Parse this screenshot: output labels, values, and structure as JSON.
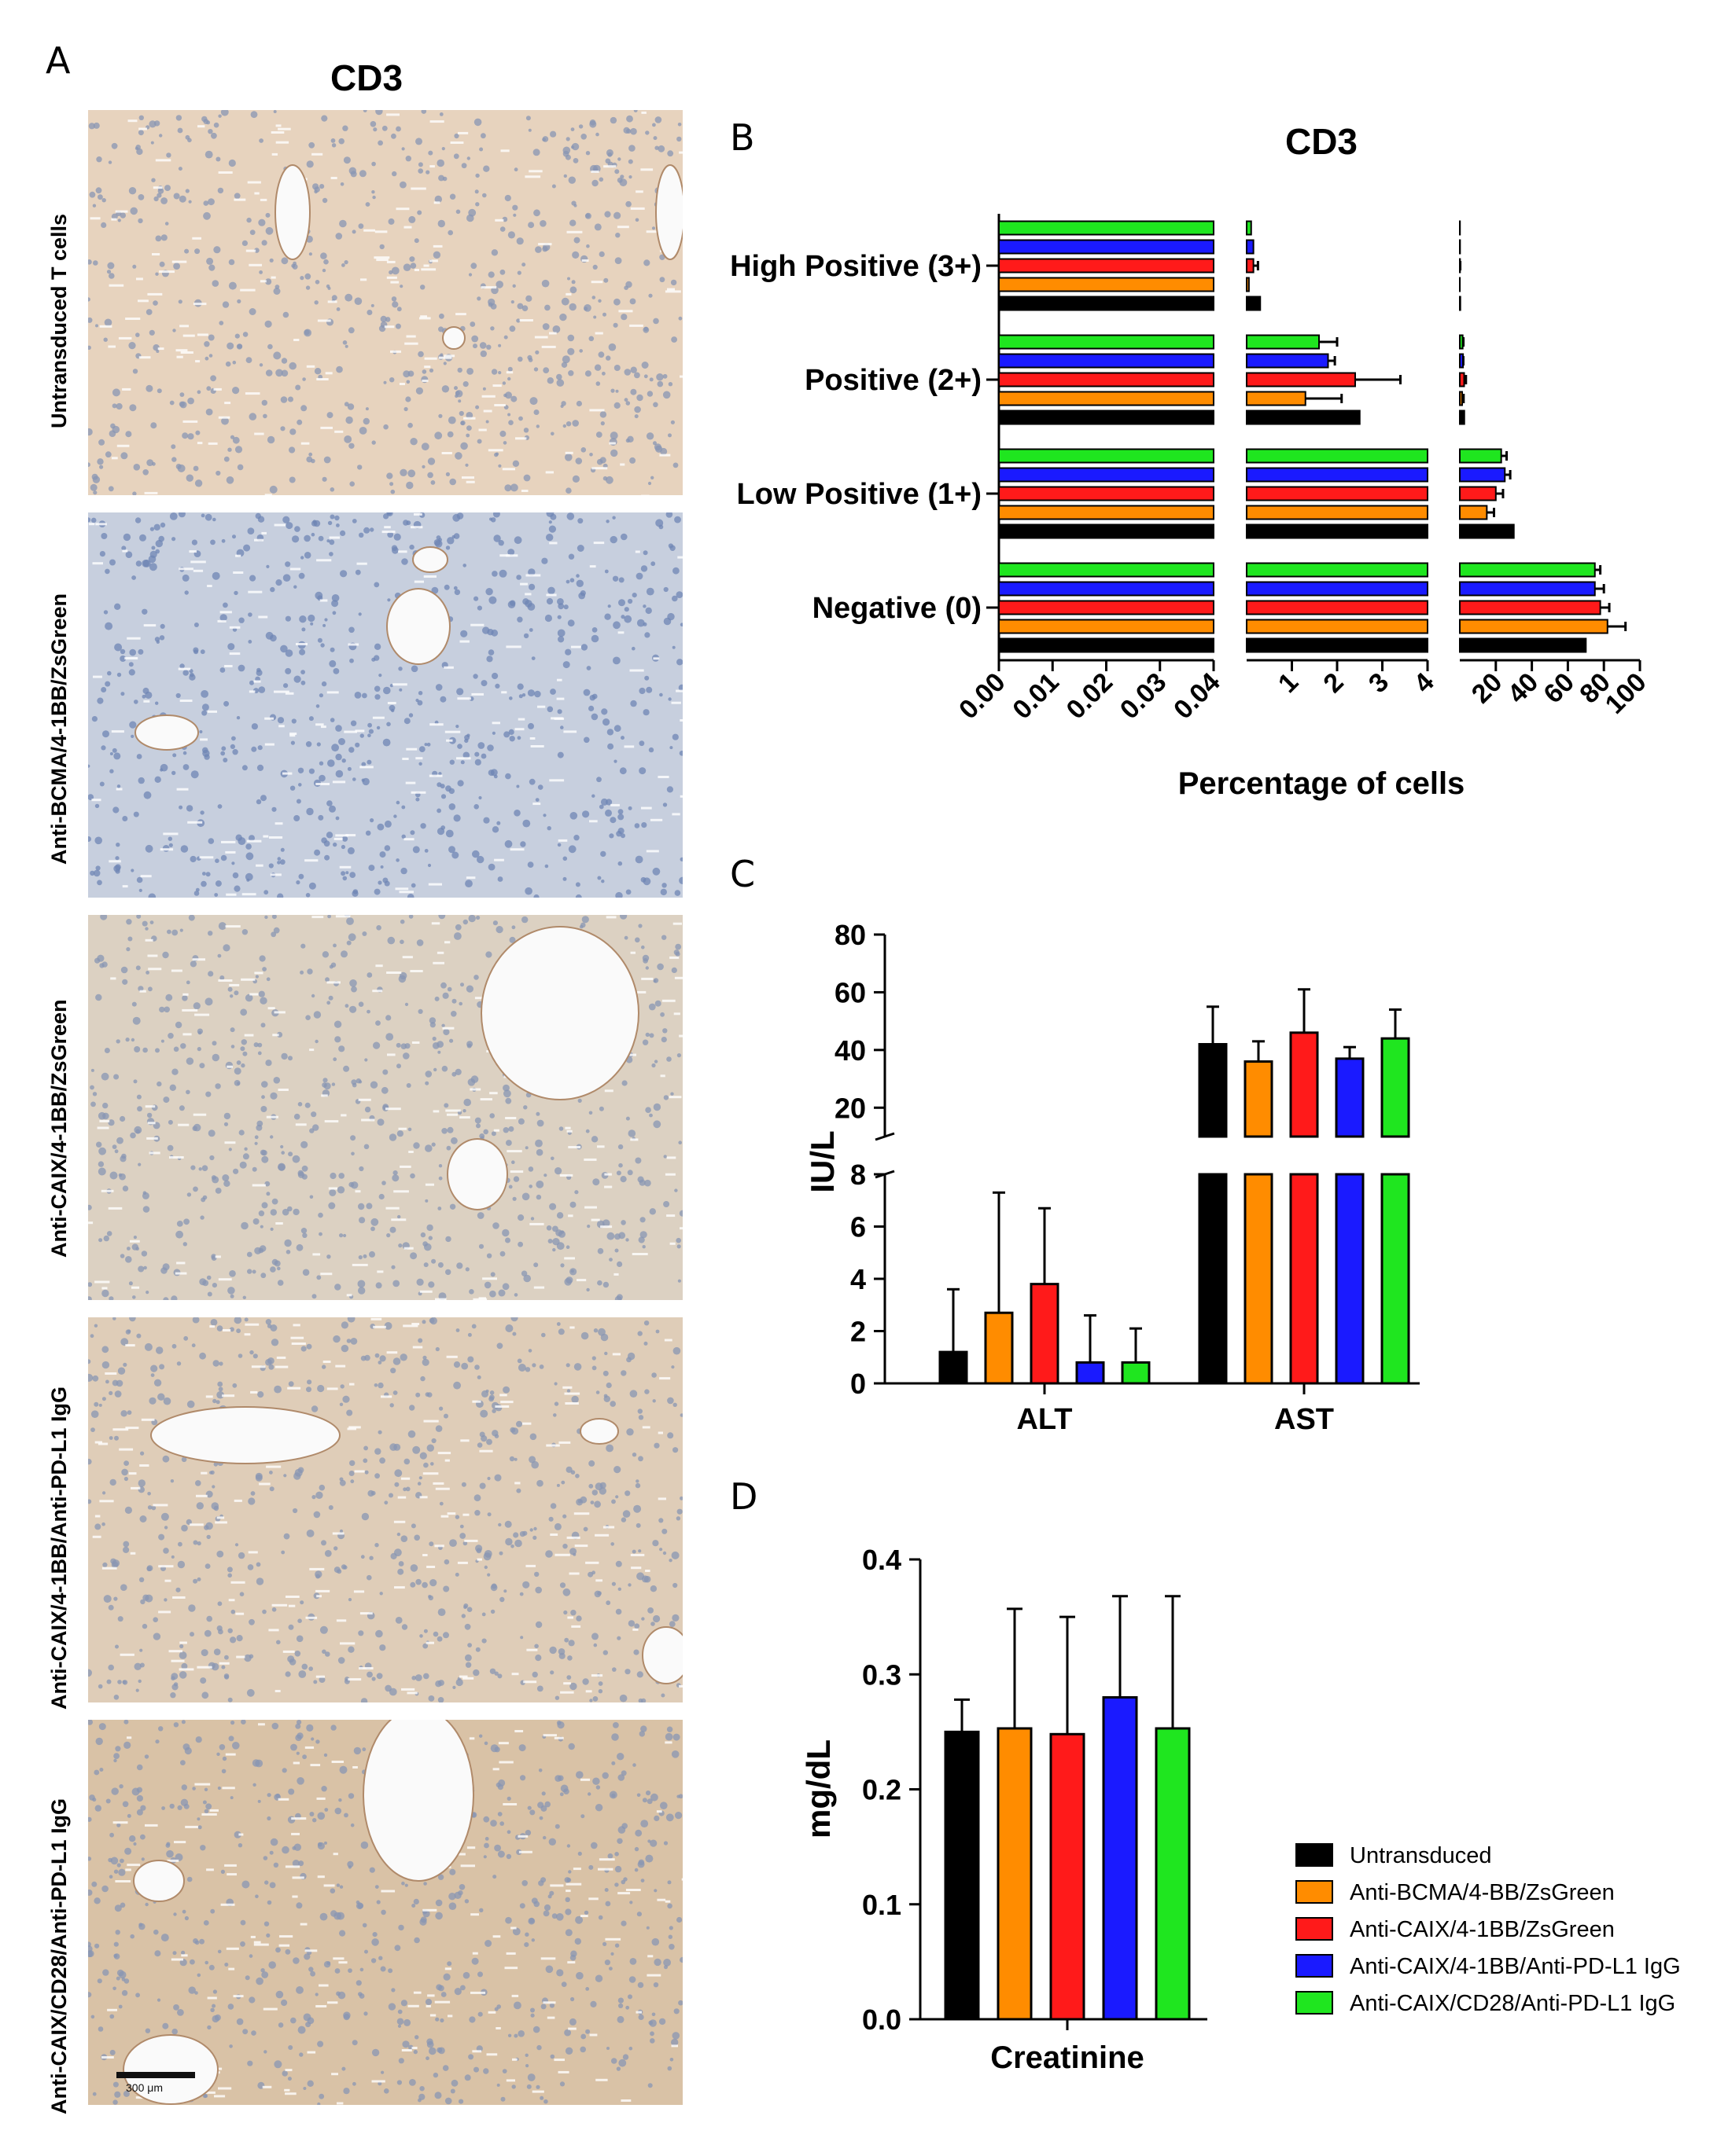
{
  "panels": {
    "a": "A",
    "b": "B",
    "c": "C",
    "d": "D"
  },
  "images": {
    "title": "CD3",
    "rows": [
      {
        "label": "Untransduced T cells"
      },
      {
        "label": "Anti-BCMA/4-1BB/ZsGreen"
      },
      {
        "label": "Anti-CAIX/4-1BB/ZsGreen"
      },
      {
        "label": "Anti-CAIX/4-1BB/Anti-PD-L1 IgG"
      },
      {
        "label": "Anti-CAIX/CD28/Anti-PD-L1 IgG"
      }
    ],
    "scale_bar": "300 μm"
  },
  "colors": {
    "untransduced": "#000000",
    "bcma": "#ff8c00",
    "caix_41bb": "#ff1a1a",
    "caix_41bb_pdl1": "#1a1aff",
    "caix_cd28_pdl1": "#1fe61f"
  },
  "legend": [
    {
      "label": "Untransduced",
      "color": "#000000"
    },
    {
      "label": "Anti-BCMA/4-BB/ZsGreen",
      "color": "#ff8c00"
    },
    {
      "label": "Anti-CAIX/4-1BB/ZsGreen",
      "color": "#ff1a1a"
    },
    {
      "label": "Anti-CAIX/4-1BB/Anti-PD-L1 IgG",
      "color": "#1a1aff"
    },
    {
      "label": "Anti-CAIX/CD28/Anti-PD-L1 IgG",
      "color": "#1fe61f"
    }
  ],
  "chart_data": [
    {
      "id": "B",
      "type": "bar",
      "orientation": "horizontal",
      "title": "CD3",
      "xlabel": "Percentage of cells",
      "categories": [
        "High Positive (3+)",
        "Positive (2+)",
        "Low Positive (1+)",
        "Negative (0)"
      ],
      "x_segments": [
        {
          "range": [
            0,
            0.04
          ],
          "ticks": [
            "0.00",
            "0.01",
            "0.02",
            "0.03",
            "0.04"
          ]
        },
        {
          "range": [
            0,
            4
          ],
          "ticks": [
            "1",
            "2",
            "3",
            "4"
          ]
        },
        {
          "range": [
            0,
            100
          ],
          "ticks": [
            "20",
            "40",
            "60",
            "80",
            "100"
          ]
        }
      ],
      "series": [
        {
          "name": "Untransduced",
          "values": [
            0.3,
            2.5,
            30,
            70
          ],
          "errors": [
            0,
            0,
            0,
            0
          ]
        },
        {
          "name": "Anti-BCMA/4-BB/ZsGreen",
          "values": [
            0.05,
            1.3,
            15,
            82
          ],
          "errors": [
            0,
            0.8,
            4,
            10
          ]
        },
        {
          "name": "Anti-CAIX/4-1BB/ZsGreen",
          "values": [
            0.15,
            2.4,
            20,
            78
          ],
          "errors": [
            0.1,
            1.0,
            4,
            5
          ]
        },
        {
          "name": "Anti-CAIX/4-1BB/Anti-PD-L1 IgG",
          "values": [
            0.15,
            1.8,
            25,
            75
          ],
          "errors": [
            0,
            0.15,
            3,
            5
          ]
        },
        {
          "name": "Anti-CAIX/CD28/Anti-PD-L1 IgG",
          "values": [
            0.1,
            1.6,
            23,
            75
          ],
          "errors": [
            0,
            0.4,
            3,
            3
          ]
        }
      ]
    },
    {
      "id": "C",
      "type": "bar",
      "ylabel": "IU/L",
      "categories": [
        "ALT",
        "AST"
      ],
      "y_segments": [
        {
          "range": [
            0,
            8
          ],
          "ticks": [
            "0",
            "2",
            "4",
            "6",
            "8"
          ]
        },
        {
          "range": [
            10,
            80
          ],
          "ticks": [
            "20",
            "40",
            "60",
            "80"
          ]
        }
      ],
      "series": [
        {
          "name": "Untransduced",
          "values": [
            1.2,
            42
          ],
          "errors": [
            2.4,
            13
          ]
        },
        {
          "name": "Anti-BCMA/4-BB/ZsGreen",
          "values": [
            2.7,
            36
          ],
          "errors": [
            4.6,
            7
          ]
        },
        {
          "name": "Anti-CAIX/4-1BB/ZsGreen",
          "values": [
            3.8,
            46
          ],
          "errors": [
            2.9,
            15
          ]
        },
        {
          "name": "Anti-CAIX/4-1BB/Anti-PD-L1 IgG",
          "values": [
            0.8,
            37
          ],
          "errors": [
            1.8,
            4
          ]
        },
        {
          "name": "Anti-CAIX/CD28/Anti-PD-L1 IgG",
          "values": [
            0.8,
            44
          ],
          "errors": [
            1.3,
            10
          ]
        }
      ]
    },
    {
      "id": "D",
      "type": "bar",
      "ylabel": "mg/dL",
      "categories": [
        "Creatinine"
      ],
      "ylim": [
        0,
        0.4
      ],
      "yticks": [
        "0.0",
        "0.1",
        "0.2",
        "0.3",
        "0.4"
      ],
      "series": [
        {
          "name": "Untransduced",
          "values": [
            0.25
          ],
          "errors": [
            0.028
          ]
        },
        {
          "name": "Anti-BCMA/4-BB/ZsGreen",
          "values": [
            0.253
          ],
          "errors": [
            0.104
          ]
        },
        {
          "name": "Anti-CAIX/4-1BB/ZsGreen",
          "values": [
            0.248
          ],
          "errors": [
            0.102
          ]
        },
        {
          "name": "Anti-CAIX/4-1BB/Anti-PD-L1 IgG",
          "values": [
            0.28
          ],
          "errors": [
            0.088
          ]
        },
        {
          "name": "Anti-CAIX/CD28/Anti-PD-L1 IgG",
          "values": [
            0.253
          ],
          "errors": [
            0.115
          ]
        }
      ]
    }
  ]
}
